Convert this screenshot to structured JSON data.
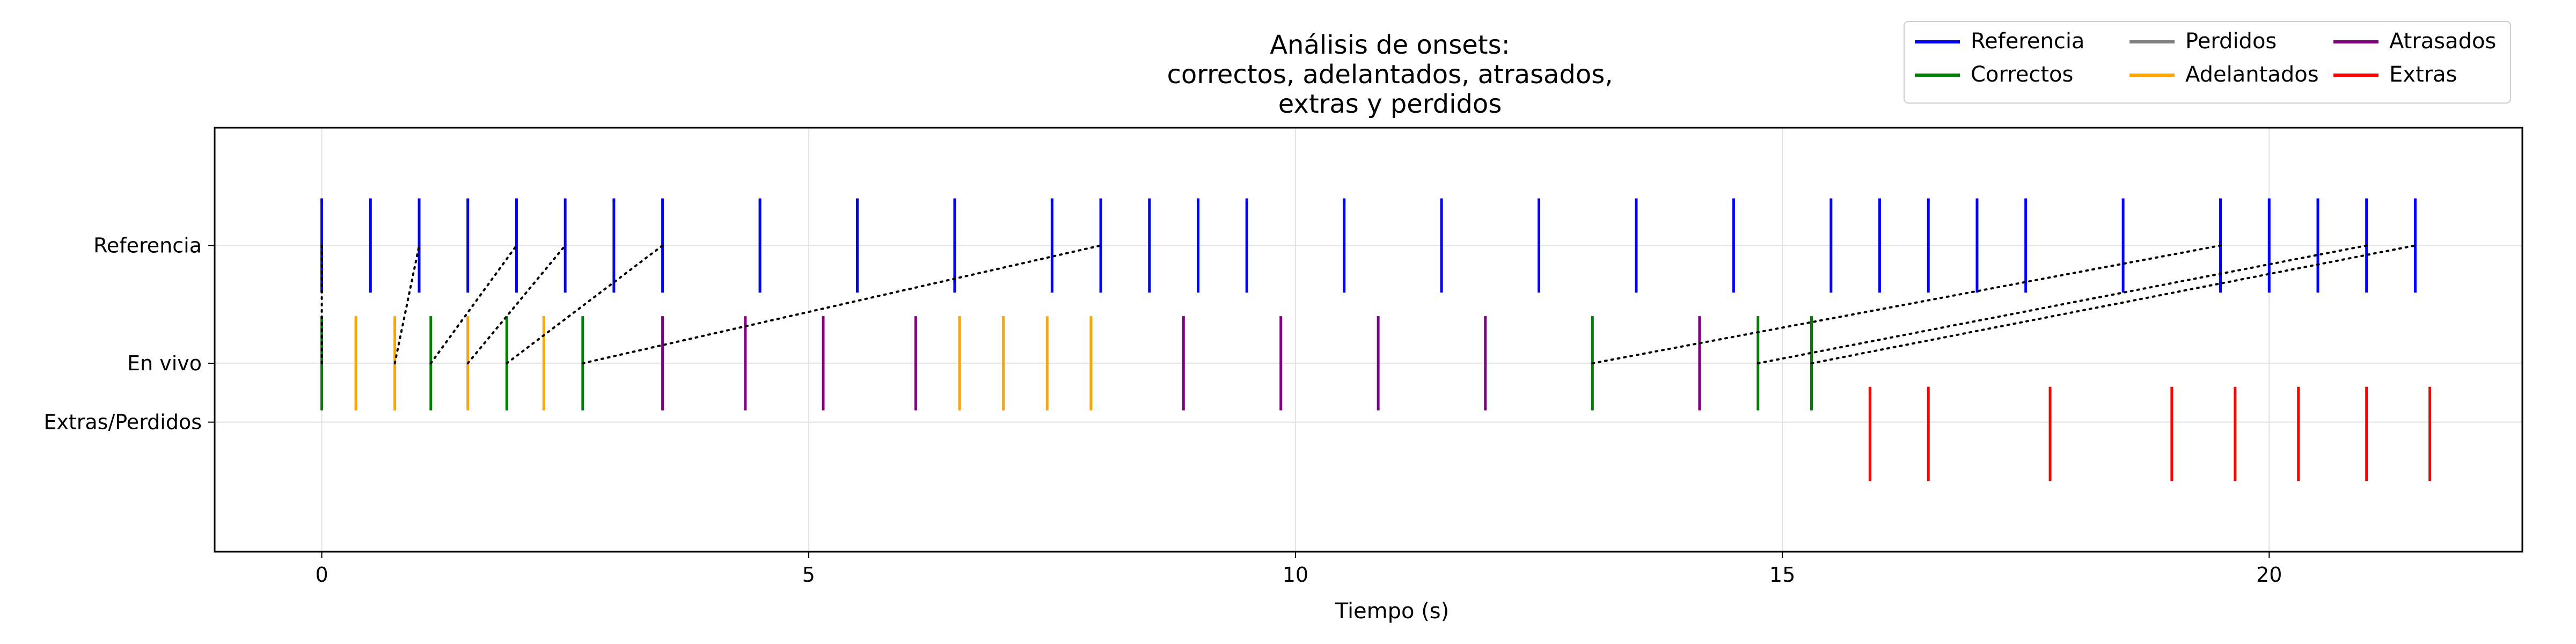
{
  "chart_data": {
    "type": "scatter",
    "title_lines": [
      "Análisis de onsets:",
      "correctos, adelantados, atrasados,",
      "extras y perdidos"
    ],
    "xlabel": "Tiempo (s)",
    "ylabel": "",
    "xlim": [
      -1.1,
      22.6
    ],
    "ylim": [
      -1.6,
      2.0
    ],
    "x_ticks": [
      0,
      5,
      10,
      15,
      20
    ],
    "y_ticks": [
      {
        "value": 1,
        "label": "Referencia"
      },
      {
        "value": 0,
        "label": "En vivo"
      },
      {
        "value": -0.5,
        "label": "Extras/Perdidos"
      }
    ],
    "grid": true,
    "legend_position": "top-right",
    "colors": {
      "Referencia": "#0000ff",
      "Correctos": "#008000",
      "Adelantados": "#ffa500",
      "Atrasados": "#800080",
      "Perdidos": "#808080",
      "Extras": "#ff0000",
      "links": "#000000"
    },
    "legend": [
      "Referencia",
      "Correctos",
      "Perdidos",
      "Adelantados",
      "Atrasados",
      "Extras"
    ],
    "series": [
      {
        "name": "Referencia",
        "row": "Referencia",
        "x": [
          0.0,
          0.5,
          1.0,
          1.5,
          2.0,
          2.5,
          3.0,
          3.5,
          4.5,
          5.5,
          6.5,
          7.5,
          8.0,
          8.5,
          9.0,
          9.5,
          10.5,
          11.5,
          12.5,
          13.5,
          14.5,
          15.5,
          16.0,
          16.5,
          17.0,
          17.5,
          18.5,
          19.5,
          20.0,
          20.5,
          21.0,
          21.5
        ]
      },
      {
        "name": "Correctos",
        "row": "En vivo",
        "x": [
          0.0,
          1.12,
          1.9,
          2.68,
          13.05,
          14.75,
          15.3
        ]
      },
      {
        "name": "Adelantados",
        "row": "En vivo",
        "x": [
          0.35,
          0.75,
          1.5,
          2.28,
          6.55,
          7.0,
          7.45,
          7.9
        ]
      },
      {
        "name": "Atrasados",
        "row": "En vivo",
        "x": [
          3.5,
          4.35,
          5.15,
          6.1,
          8.85,
          9.85,
          10.85,
          11.95,
          14.15
        ]
      },
      {
        "name": "Extras",
        "row": "Extras/Perdidos",
        "x": [
          15.9,
          16.5,
          17.75,
          19.0,
          19.65,
          20.3,
          21.0,
          21.65
        ]
      },
      {
        "name": "Perdidos",
        "row": "Extras/Perdidos",
        "x": []
      }
    ],
    "links": [
      {
        "live": 0.0,
        "ref": 0.0
      },
      {
        "live": 0.75,
        "ref": 1.0
      },
      {
        "live": 1.12,
        "ref": 2.0
      },
      {
        "live": 1.5,
        "ref": 2.5
      },
      {
        "live": 1.9,
        "ref": 3.5
      },
      {
        "live": 2.68,
        "ref": 8.0
      },
      {
        "live": 13.05,
        "ref": 19.5
      },
      {
        "live": 14.75,
        "ref": 21.0
      },
      {
        "live": 15.3,
        "ref": 21.5
      }
    ]
  }
}
